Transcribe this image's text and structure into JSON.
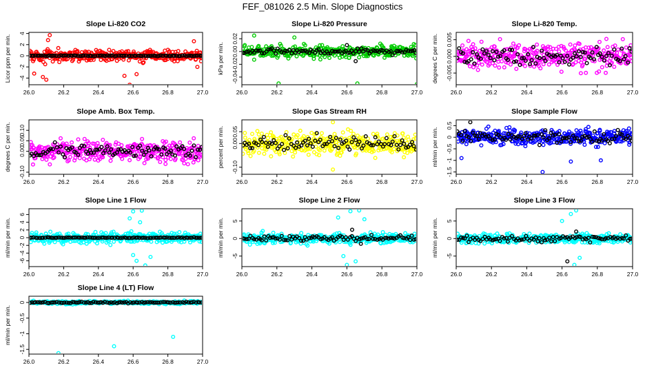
{
  "page_title": "FEF_081026  2.5 Min. Slope Diagnostics",
  "chart_data": [
    {
      "type": "scatter",
      "title": "Slope Li-820 CO2",
      "ylabel": "Licor ppm per min.",
      "xlim": [
        26.0,
        27.0
      ],
      "ylim": [
        -5.2,
        4.2
      ],
      "yticks": [
        -4,
        -2,
        0,
        2,
        4
      ],
      "ytick_labels": [
        "-4",
        "-2",
        "0",
        "2",
        "4"
      ],
      "xticks": [
        26.0,
        26.2,
        26.4,
        26.6,
        26.8,
        27.0
      ],
      "xtick_labels": [
        "26.0",
        "26.2",
        "26.4",
        "26.6",
        "26.8",
        "27.0"
      ],
      "series": [
        {
          "name": "scatter",
          "color": "#ff0000",
          "spread": 0.9,
          "outliers": [
            [
              26.03,
              -3.2
            ],
            [
              26.08,
              -3.8
            ],
            [
              26.1,
              -4.3
            ],
            [
              26.12,
              3.7
            ],
            [
              26.11,
              2.8
            ],
            [
              26.55,
              -3.6
            ],
            [
              26.58,
              -5.2
            ],
            [
              26.62,
              -3.3
            ],
            [
              26.97,
              -2.0
            ],
            [
              26.95,
              2.6
            ]
          ]
        },
        {
          "name": "median",
          "color": "#000000",
          "spread": 0.12,
          "outliers": []
        }
      ]
    },
    {
      "type": "scatter",
      "title": "Slope Li-820 Pressure",
      "ylabel": "kPa per min.",
      "xlim": [
        26.0,
        27.0
      ],
      "ylim": [
        -0.052,
        0.03
      ],
      "yticks": [
        -0.04,
        -0.02,
        0.0,
        0.02
      ],
      "ytick_labels": [
        "-0.04",
        "-0.02",
        "0.00",
        "0.02"
      ],
      "xticks": [
        26.0,
        26.2,
        26.4,
        26.6,
        26.8,
        27.0
      ],
      "xtick_labels": [
        "26.0",
        "26.2",
        "26.4",
        "26.6",
        "26.8",
        "27.0"
      ],
      "series": [
        {
          "name": "scatter",
          "color": "#00cc00",
          "spread": 0.008,
          "outliers": [
            [
              26.21,
              -0.05
            ],
            [
              26.66,
              -0.05
            ],
            [
              27.0,
              -0.051
            ],
            [
              26.07,
              0.025
            ],
            [
              26.3,
              0.022
            ]
          ]
        },
        {
          "name": "median",
          "color": "#000000",
          "spread": 0.004,
          "outliers": [
            [
              26.6,
              0.01
            ],
            [
              26.65,
              -0.015
            ]
          ]
        }
      ]
    },
    {
      "type": "scatter",
      "title": "Slope Li-820 Temp.",
      "ylabel": "degrees C per min.",
      "xlim": [
        26.0,
        27.0
      ],
      "ylim": [
        -0.0085,
        0.0072
      ],
      "yticks": [
        -0.005,
        0.0,
        0.005
      ],
      "ytick_labels": [
        "-0.005",
        "0.000",
        "0.005"
      ],
      "xticks": [
        26.0,
        26.2,
        26.4,
        26.6,
        26.8,
        27.0
      ],
      "xtick_labels": [
        "26.0",
        "26.2",
        "26.4",
        "26.6",
        "26.8",
        "27.0"
      ],
      "series": [
        {
          "name": "scatter",
          "color": "#ff00ff",
          "spread": 0.0035,
          "outliers": []
        },
        {
          "name": "median",
          "color": "#000000",
          "spread": 0.003,
          "outliers": []
        }
      ]
    },
    {
      "type": "scatter",
      "title": "Slope Amb. Box Temp.",
      "ylabel": "degrees C per min.",
      "xlim": [
        26.0,
        27.0
      ],
      "ylim": [
        -0.11,
        0.15
      ],
      "yticks": [
        -0.1,
        0.0,
        0.05,
        0.1
      ],
      "ytick_labels": [
        "-0.10",
        "0.00",
        "0.05",
        "0.10"
      ],
      "xticks": [
        26.0,
        26.2,
        26.4,
        26.6,
        26.8,
        27.0
      ],
      "xtick_labels": [
        "26.0",
        "26.2",
        "26.4",
        "26.6",
        "26.8",
        "27.0"
      ],
      "series": [
        {
          "name": "scatter",
          "color": "#ff00ff",
          "spread": 0.045,
          "outliers": []
        },
        {
          "name": "median",
          "color": "#000000",
          "spread": 0.03,
          "outliers": []
        }
      ]
    },
    {
      "type": "scatter",
      "title": "Slope Gas Stream RH",
      "ylabel": "percent per min.",
      "xlim": [
        26.0,
        27.0
      ],
      "ylim": [
        -0.13,
        0.1
      ],
      "yticks": [
        -0.1,
        0.0,
        0.05
      ],
      "ytick_labels": [
        "-0.10",
        "0.00",
        "0.05"
      ],
      "xticks": [
        26.0,
        26.2,
        26.4,
        26.6,
        26.8,
        27.0
      ],
      "xtick_labels": [
        "26.0",
        "26.2",
        "26.4",
        "26.6",
        "26.8",
        "27.0"
      ],
      "series": [
        {
          "name": "scatter",
          "color": "#ffff00",
          "spread": 0.04,
          "outliers": [
            [
              26.52,
              0.09
            ],
            [
              26.52,
              -0.11
            ]
          ]
        },
        {
          "name": "median",
          "color": "#000000",
          "spread": 0.03,
          "outliers": []
        }
      ]
    },
    {
      "type": "scatter",
      "title": "Slope Sample Flow",
      "ylabel": "ml/min per min.",
      "xlim": [
        26.0,
        27.0
      ],
      "ylim": [
        -1.6,
        0.75
      ],
      "yticks": [
        -1.5,
        -1.0,
        -0.5,
        0.0,
        0.5
      ],
      "ytick_labels": [
        "-1.5",
        "-1",
        "-0.5",
        "0",
        "0.5"
      ],
      "xticks": [
        26.0,
        26.2,
        26.4,
        26.6,
        26.8,
        27.0
      ],
      "xtick_labels": [
        "26.0",
        "26.2",
        "26.4",
        "26.6",
        "26.8",
        "27.0"
      ],
      "series": [
        {
          "name": "scatter",
          "color": "#0000ff",
          "spread": 0.3,
          "outliers": [
            [
              26.49,
              -1.5
            ],
            [
              26.82,
              -1.0
            ],
            [
              26.65,
              -1.05
            ],
            [
              26.03,
              -0.9
            ]
          ]
        },
        {
          "name": "median",
          "color": "#000000",
          "spread": 0.25,
          "outliers": [
            [
              26.08,
              0.65
            ]
          ]
        }
      ]
    },
    {
      "type": "scatter",
      "title": "Slope Line 1 Flow",
      "ylabel": "ml/min per min.",
      "xlim": [
        26.0,
        27.0
      ],
      "ylim": [
        -7.5,
        7.5
      ],
      "yticks": [
        -6,
        -4,
        -2,
        0,
        2,
        4,
        6
      ],
      "ytick_labels": [
        "-6",
        "-4",
        "-2",
        "0",
        "2",
        "4",
        "6"
      ],
      "xticks": [
        26.0,
        26.2,
        26.4,
        26.6,
        26.8,
        27.0
      ],
      "xtick_labels": [
        "26.0",
        "26.2",
        "26.4",
        "26.6",
        "26.8",
        "27.0"
      ],
      "series": [
        {
          "name": "scatter",
          "color": "#00ffff",
          "spread": 1.2,
          "outliers": [
            [
              26.6,
              6.8
            ],
            [
              26.65,
              7.0
            ],
            [
              26.62,
              -6.0
            ],
            [
              26.67,
              -7.2
            ],
            [
              26.58,
              5.0
            ],
            [
              26.7,
              -5.0
            ],
            [
              26.64,
              4.0
            ],
            [
              26.6,
              -4.5
            ]
          ]
        },
        {
          "name": "median",
          "color": "#000000",
          "spread": 0.15,
          "outliers": []
        }
      ]
    },
    {
      "type": "scatter",
      "title": "Slope Line 2 Flow",
      "ylabel": "ml/min per min.",
      "xlim": [
        26.0,
        27.0
      ],
      "ylim": [
        -8.0,
        8.5
      ],
      "yticks": [
        -5,
        0,
        5
      ],
      "ytick_labels": [
        "-5",
        "0",
        "5"
      ],
      "xticks": [
        26.0,
        26.2,
        26.4,
        26.6,
        26.8,
        27.0
      ],
      "xtick_labels": [
        "26.0",
        "26.2",
        "26.4",
        "26.6",
        "26.8",
        "27.0"
      ],
      "series": [
        {
          "name": "scatter",
          "color": "#00ffff",
          "spread": 1.3,
          "outliers": [
            [
              26.62,
              7.8
            ],
            [
              26.67,
              8.0
            ],
            [
              26.6,
              -7.5
            ],
            [
              26.65,
              -6.5
            ],
            [
              26.7,
              5.5
            ],
            [
              26.58,
              -5.0
            ],
            [
              26.55,
              6.0
            ]
          ]
        },
        {
          "name": "median",
          "color": "#000000",
          "spread": 0.8,
          "outliers": [
            [
              26.63,
              2.5
            ],
            [
              26.68,
              -1.5
            ]
          ]
        }
      ]
    },
    {
      "type": "scatter",
      "title": "Slope Line 3 Flow",
      "ylabel": "ml/min per min.",
      "xlim": [
        26.0,
        27.0
      ],
      "ylim": [
        -8.0,
        8.5
      ],
      "yticks": [
        -5,
        0,
        5
      ],
      "ytick_labels": [
        "-5",
        "0",
        "5"
      ],
      "xticks": [
        26.0,
        26.2,
        26.4,
        26.6,
        26.8,
        27.0
      ],
      "xtick_labels": [
        "26.0",
        "26.2",
        "26.4",
        "26.6",
        "26.8",
        "27.0"
      ],
      "series": [
        {
          "name": "scatter",
          "color": "#00ffff",
          "spread": 1.2,
          "outliers": [
            [
              26.65,
              7.0
            ],
            [
              26.68,
              8.0
            ],
            [
              26.67,
              -7.5
            ],
            [
              26.7,
              -5.5
            ],
            [
              26.6,
              5.0
            ]
          ]
        },
        {
          "name": "median",
          "color": "#000000",
          "spread": 0.8,
          "outliers": [
            [
              26.63,
              -6.5
            ],
            [
              26.68,
              2.0
            ]
          ]
        }
      ]
    },
    {
      "type": "scatter",
      "title": "Slope Line 4 (LT) Flow",
      "ylabel": "ml/min per min.",
      "xlim": [
        26.0,
        27.0
      ],
      "ylim": [
        -1.65,
        0.2
      ],
      "yticks": [
        -1.5,
        -1.0,
        -0.5,
        0.0
      ],
      "ytick_labels": [
        "-1.5",
        "-1",
        "-0.5",
        "0"
      ],
      "xticks": [
        26.0,
        26.2,
        26.4,
        26.6,
        26.8,
        27.0
      ],
      "xtick_labels": [
        "26.0",
        "26.2",
        "26.4",
        "26.6",
        "26.8",
        "27.0"
      ],
      "series": [
        {
          "name": "scatter",
          "color": "#00ffff",
          "spread": 0.04,
          "outliers": [
            [
              26.17,
              -1.62
            ],
            [
              26.49,
              -1.4
            ],
            [
              26.83,
              -1.1
            ]
          ]
        },
        {
          "name": "median",
          "color": "#000000",
          "spread": 0.035,
          "outliers": []
        }
      ]
    }
  ]
}
